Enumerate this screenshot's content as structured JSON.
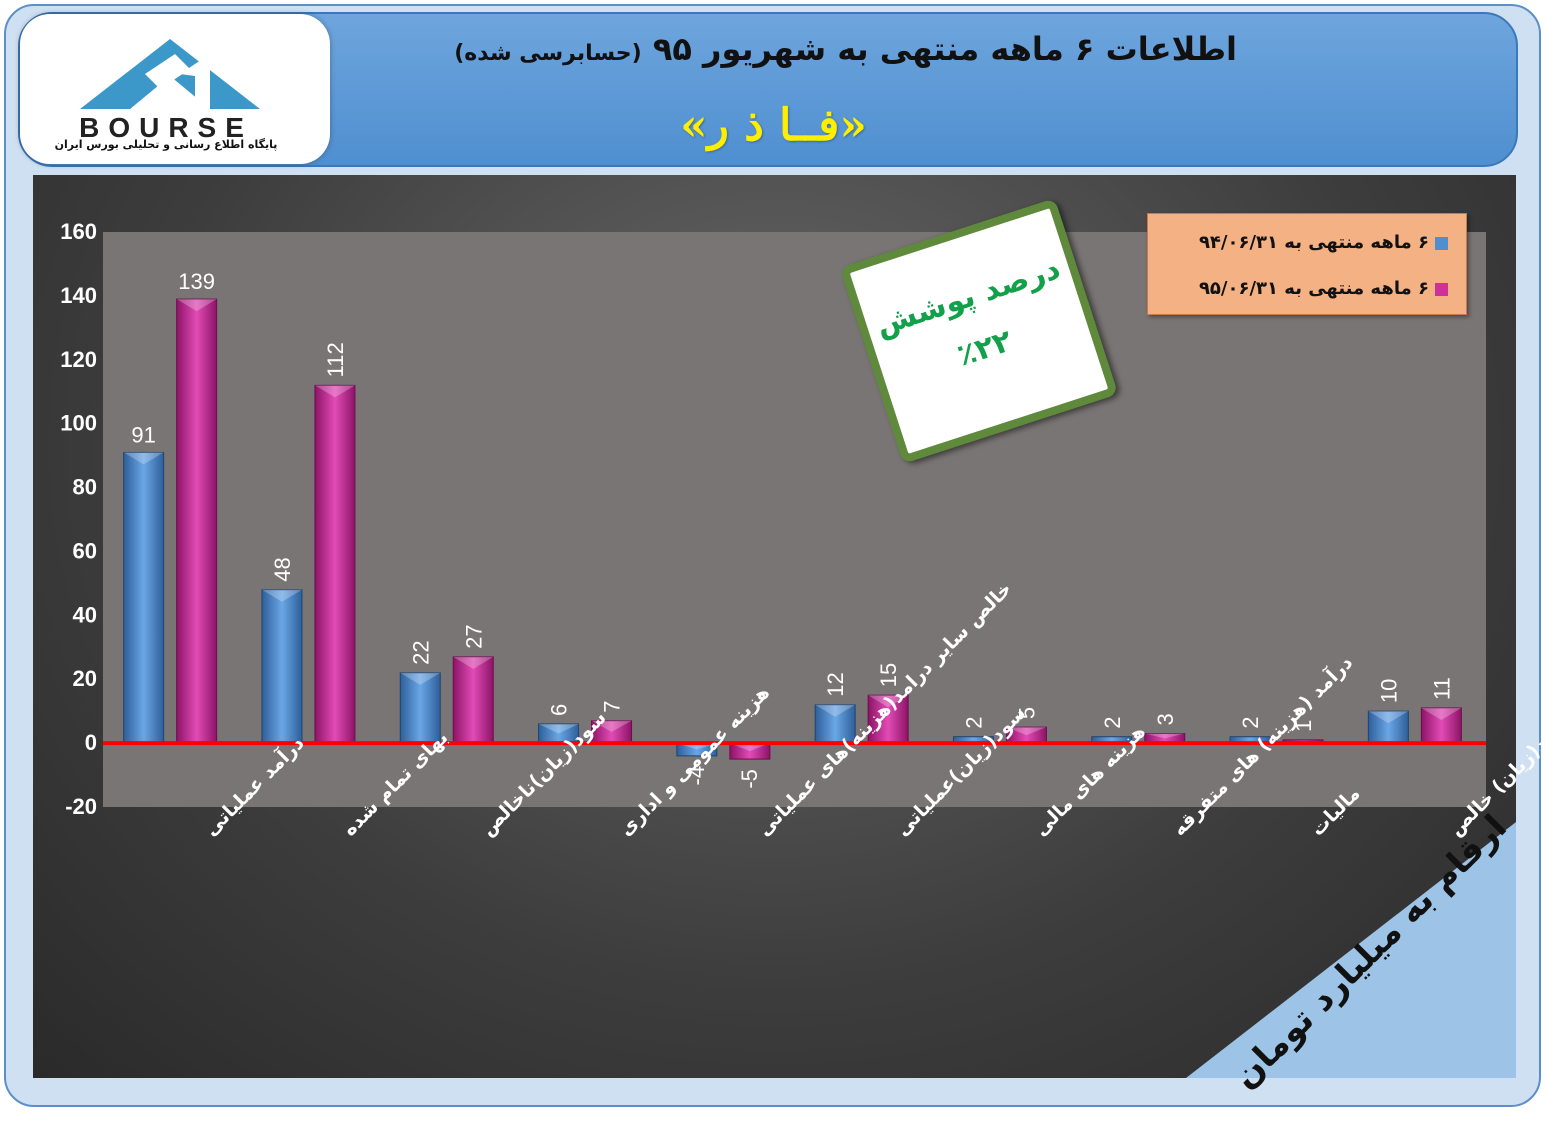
{
  "header": {
    "title_main": "اطلاعات ۶ ماهه منتهی به شهریور ۹۵",
    "title_sub": "(حسابرسی شده)",
    "company": "«فــا ذ ر»",
    "logo_text": "BOURSE",
    "logo_subtitle": "پایگاه اطلاع رسانی و تحلیلی بورس ایران"
  },
  "badge": {
    "line1": "درصد پوشش",
    "line2": "٪۲۲"
  },
  "units_note": "ارقام به میلیارد تومان",
  "colors": {
    "series1": "#4f8fd0",
    "series2": "#d0309a",
    "zero_line": "#ff0000",
    "plot_bg": "#7a7575"
  },
  "chart_data": {
    "type": "bar",
    "categories": [
      "درآمد عملیاتی",
      "بهای تمام شده",
      "سود(زیان)ناخالص",
      "هزینه عمومی و اداری",
      "خالص سایر درامد(هزینه)های عملیاتی",
      "سود(زیان)عملیاتی",
      "هزینه های مالی",
      "درآمد (هزینه) های متفرقه",
      "مالیات",
      "سود(زیان) خالص"
    ],
    "series": [
      {
        "name": "۶ ماهه منتهی به ۹۴/۰۶/۳۱",
        "values": [
          91,
          48,
          22,
          6,
          -4,
          12,
          2,
          2,
          2,
          10
        ]
      },
      {
        "name": "۶ ماهه منتهی به ۹۵/۰۶/۳۱",
        "values": [
          139,
          112,
          27,
          7,
          -5,
          15,
          5,
          3,
          1,
          11
        ]
      }
    ],
    "ylim": [
      -20,
      160
    ],
    "yticks": [
      -20,
      0,
      20,
      40,
      60,
      80,
      100,
      120,
      140,
      160
    ],
    "legend": "top-right",
    "grid": false
  }
}
